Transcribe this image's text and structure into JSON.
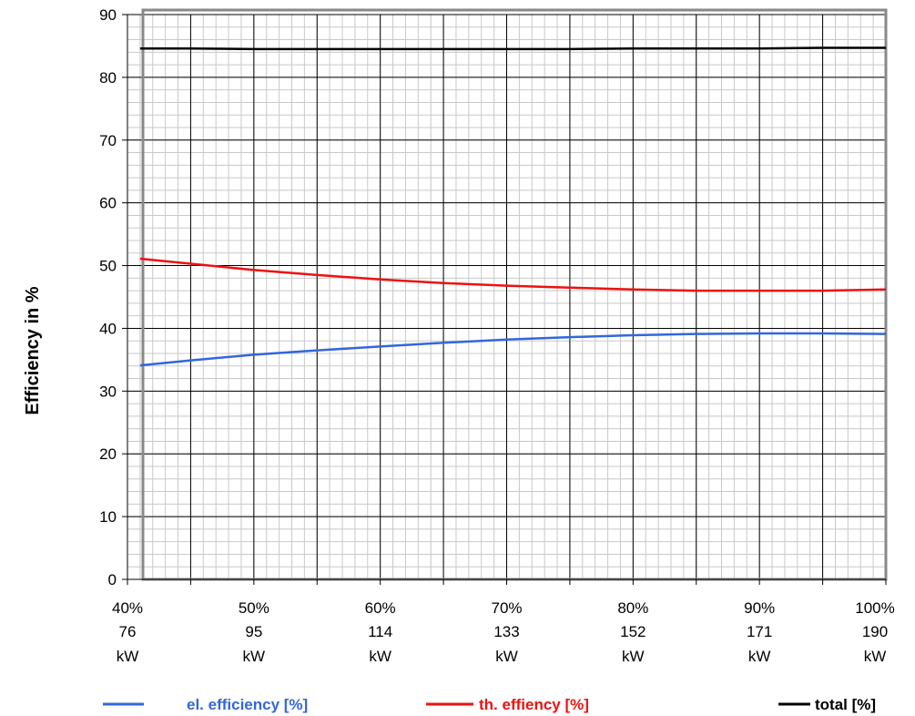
{
  "chart_data": {
    "type": "line",
    "title": "",
    "xlabel": "",
    "ylabel": "Efficiency in %",
    "xlim": [
      40,
      100
    ],
    "ylim": [
      0,
      90
    ],
    "y_ticks": [
      "0",
      "10",
      "20",
      "30",
      "40",
      "50",
      "60",
      "70",
      "80",
      "90"
    ],
    "x_ticks": [
      {
        "pct": "40%",
        "kw": "76",
        "unit": "kW"
      },
      {
        "pct": "50%",
        "kw": "95",
        "unit": "kW"
      },
      {
        "pct": "60%",
        "kw": "114",
        "unit": "kW"
      },
      {
        "pct": "70%",
        "kw": "133",
        "unit": "kW"
      },
      {
        "pct": "80%",
        "kw": "152",
        "unit": "kW"
      },
      {
        "pct": "90%",
        "kw": "171",
        "unit": "kW"
      },
      {
        "pct": "100%",
        "kw": "190",
        "unit": "kW"
      }
    ],
    "grid": true,
    "legend_position": "bottom",
    "series": [
      {
        "name": "el. efficiency [%]",
        "color": "#3366dd",
        "points": [
          [
            41,
            34.1
          ],
          [
            45,
            34.9
          ],
          [
            50,
            35.8
          ],
          [
            55,
            36.5
          ],
          [
            60,
            37.1
          ],
          [
            65,
            37.7
          ],
          [
            70,
            38.2
          ],
          [
            75,
            38.6
          ],
          [
            80,
            38.9
          ],
          [
            85,
            39.1
          ],
          [
            90,
            39.2
          ],
          [
            95,
            39.2
          ],
          [
            100,
            39.1
          ]
        ]
      },
      {
        "name": "th. effiency [%]",
        "color": "#ee1111",
        "points": [
          [
            41,
            51.1
          ],
          [
            45,
            50.3
          ],
          [
            50,
            49.3
          ],
          [
            55,
            48.5
          ],
          [
            60,
            47.8
          ],
          [
            65,
            47.2
          ],
          [
            70,
            46.8
          ],
          [
            75,
            46.5
          ],
          [
            80,
            46.2
          ],
          [
            85,
            46.0
          ],
          [
            90,
            46.0
          ],
          [
            95,
            46.0
          ],
          [
            100,
            46.2
          ]
        ]
      },
      {
        "name": "total [%]",
        "color": "#000000",
        "points": [
          [
            41,
            84.6
          ],
          [
            45,
            84.6
          ],
          [
            50,
            84.5
          ],
          [
            55,
            84.5
          ],
          [
            60,
            84.5
          ],
          [
            65,
            84.5
          ],
          [
            70,
            84.5
          ],
          [
            75,
            84.5
          ],
          [
            80,
            84.6
          ],
          [
            85,
            84.6
          ],
          [
            90,
            84.6
          ],
          [
            95,
            84.7
          ],
          [
            100,
            84.7
          ]
        ]
      }
    ]
  }
}
